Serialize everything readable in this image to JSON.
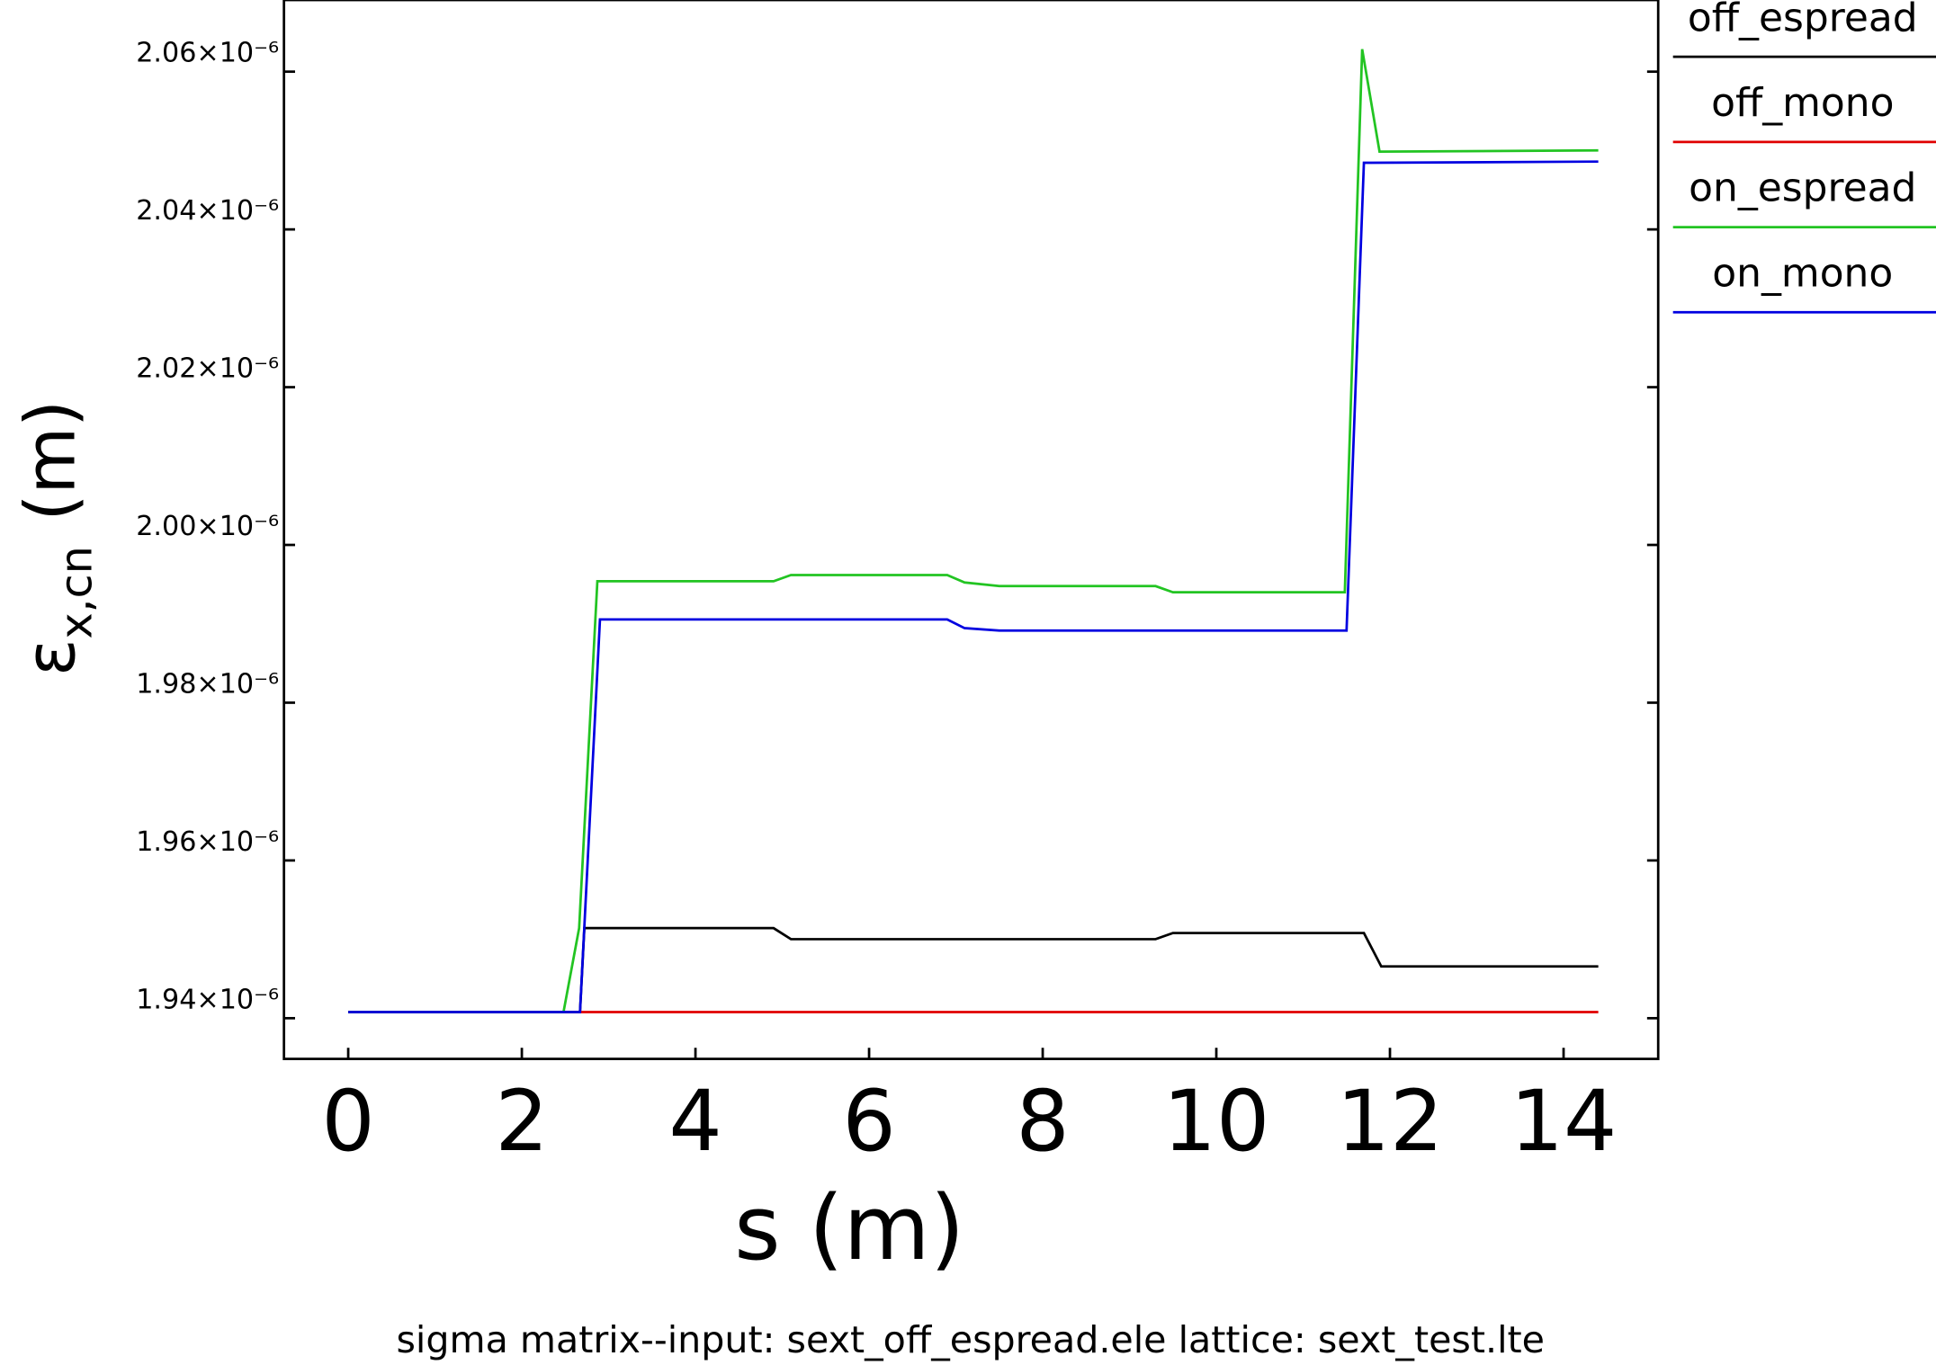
{
  "chart_data": {
    "type": "line",
    "xlabel": "s (m)",
    "ylabel_symbol": "ε",
    "ylabel_subscript": "x,cn",
    "ylabel_unit": "(m)",
    "caption": "sigma matrix--input: sext_off_espread.ele  lattice: sext_test.lte",
    "xlim": [
      -0.74,
      15.09
    ],
    "ylim": [
      1.93484e-06,
      2.06908e-06
    ],
    "xticks": [
      0,
      2,
      4,
      6,
      8,
      10,
      12,
      14
    ],
    "yticks": [
      {
        "value": 1.94e-06,
        "label": "1.94×10⁻⁶"
      },
      {
        "value": 1.96e-06,
        "label": "1.96×10⁻⁶"
      },
      {
        "value": 1.98e-06,
        "label": "1.98×10⁻⁶"
      },
      {
        "value": 2e-06,
        "label": "2.00×10⁻⁶"
      },
      {
        "value": 2.02e-06,
        "label": "2.02×10⁻⁶"
      },
      {
        "value": 2.04e-06,
        "label": "2.04×10⁻⁶"
      },
      {
        "value": 2.06e-06,
        "label": "2.06×10⁻⁶"
      }
    ],
    "legend": "outside right top",
    "series": [
      {
        "name": "off_espread",
        "color": "#000000",
        "x": [
          0,
          2.67,
          2.72,
          4.9,
          5.1,
          9.3,
          9.5,
          11.7,
          11.9,
          14.4
        ],
        "values": [
          1.94078e-06,
          1.94078e-06,
          1.95142e-06,
          1.95142e-06,
          1.95002e-06,
          1.95002e-06,
          1.9508e-06,
          1.9508e-06,
          1.94657e-06,
          1.94657e-06
        ]
      },
      {
        "name": "off_mono",
        "color": "#e00000",
        "x": [
          0,
          14.4
        ],
        "values": [
          1.94078e-06,
          1.94078e-06
        ]
      },
      {
        "name": "on_espread",
        "color": "#22c422",
        "x": [
          0,
          2.48,
          2.66,
          2.87,
          4.9,
          5.1,
          6.9,
          7.1,
          7.5,
          9.3,
          9.5,
          11.48,
          11.68,
          11.88,
          14.4
        ],
        "values": [
          1.94078e-06,
          1.94078e-06,
          1.95142e-06,
          1.9954e-06,
          1.9954e-06,
          1.99618e-06,
          1.99618e-06,
          1.99524e-06,
          1.99478e-06,
          1.99478e-06,
          1.994e-06,
          1.994e-06,
          2.06285e-06,
          2.04986e-06,
          2.05002e-06
        ]
      },
      {
        "name": "on_mono",
        "color": "#0000e0",
        "x": [
          0,
          2.67,
          2.9,
          6.9,
          7.1,
          7.5,
          11.5,
          11.7,
          14.4
        ],
        "values": [
          1.94078e-06,
          1.94078e-06,
          1.99055e-06,
          1.99055e-06,
          1.98945e-06,
          1.98914e-06,
          1.98914e-06,
          2.04845e-06,
          2.0486e-06
        ]
      }
    ]
  }
}
